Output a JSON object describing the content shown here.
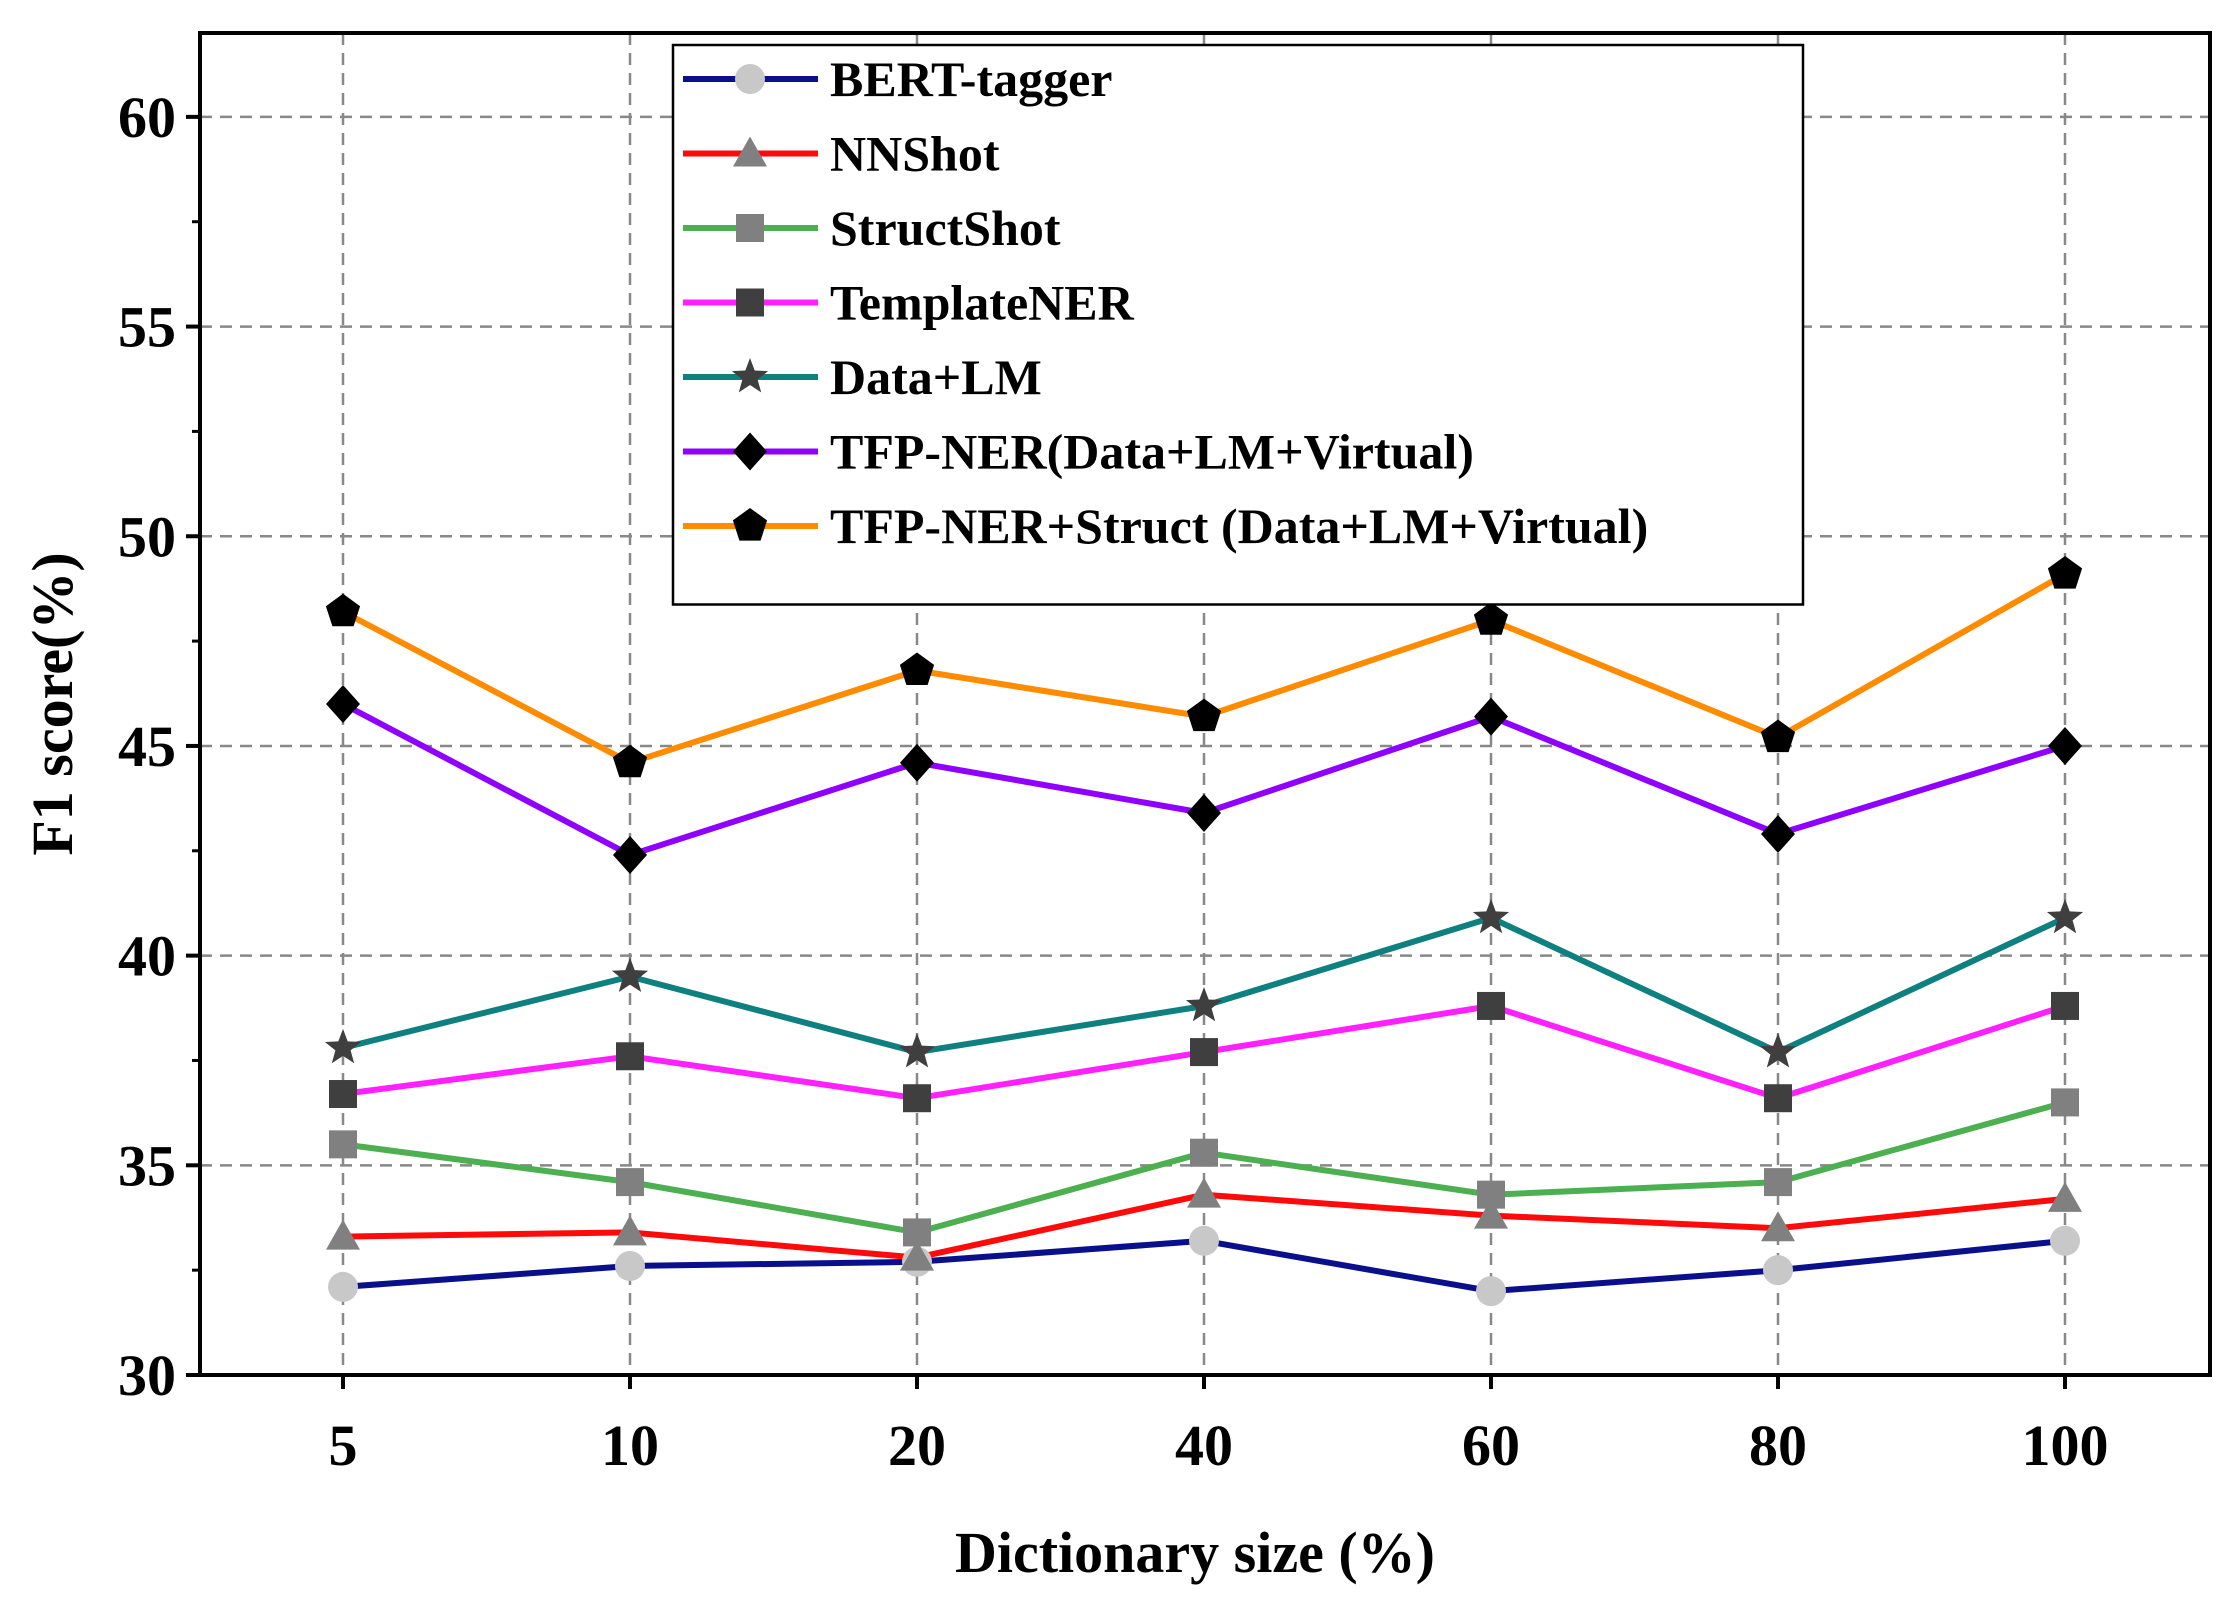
{
  "chart_data": {
    "type": "line",
    "title": "",
    "xlabel": "Dictionary size (%)",
    "ylabel": "F1 score(%)",
    "categories": [
      "5",
      "10",
      "20",
      "40",
      "60",
      "80",
      "100"
    ],
    "ylim": [
      30,
      62
    ],
    "yticks": [
      30,
      35,
      40,
      45,
      50,
      55,
      60
    ],
    "grid": true,
    "legend_position": "top-center",
    "series": [
      {
        "name": "BERT-tagger",
        "color": "#0a0f8c",
        "marker": "circle",
        "marker_color": "#c8c8c8",
        "values": [
          32.1,
          32.6,
          32.7,
          33.2,
          32.0,
          32.5,
          33.2
        ]
      },
      {
        "name": "NNShot",
        "color": "#ff0a0a",
        "marker": "triangle",
        "marker_color": "#808080",
        "values": [
          33.3,
          33.4,
          32.8,
          34.3,
          33.8,
          33.5,
          34.2
        ]
      },
      {
        "name": "StructShot",
        "color": "#4caf50",
        "marker": "square",
        "marker_color": "#808080",
        "values": [
          35.5,
          34.6,
          33.4,
          35.3,
          34.3,
          34.6,
          36.5
        ]
      },
      {
        "name": "TemplateNER",
        "color": "#ff20ff",
        "marker": "square",
        "marker_color": "#3f3f3f",
        "values": [
          36.7,
          37.6,
          36.6,
          37.7,
          38.8,
          36.6,
          38.8
        ]
      },
      {
        "name": "Data+LM",
        "color": "#0f8080",
        "marker": "star",
        "marker_color": "#3f3f3f",
        "values": [
          37.8,
          39.5,
          37.7,
          38.8,
          40.9,
          37.7,
          40.9
        ]
      },
      {
        "name": "TFP-NER(Data+LM+Virtual)",
        "color": "#8f00ff",
        "marker": "diamond",
        "marker_color": "#000000",
        "values": [
          46.0,
          42.4,
          44.6,
          43.4,
          45.7,
          42.9,
          45.0
        ]
      },
      {
        "name": "TFP-NER+Struct (Data+LM+Virtual)",
        "color": "#ff8c00",
        "marker": "pentagon",
        "marker_color": "#000000",
        "values": [
          48.2,
          44.6,
          46.8,
          45.7,
          48.0,
          45.2,
          49.1
        ]
      }
    ]
  }
}
